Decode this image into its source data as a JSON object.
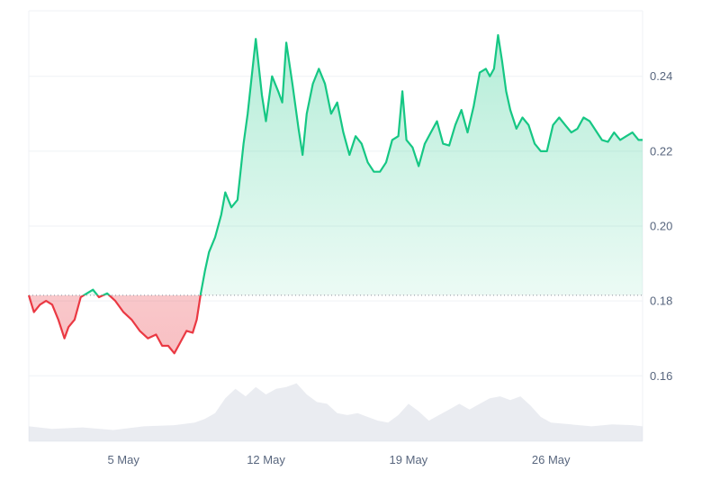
{
  "chart_data": {
    "type": "area",
    "baseline": 0.1815,
    "ylim": [
      0.1425,
      0.2575
    ],
    "y_ticks": [
      {
        "value": 0.24,
        "label": "0.24"
      },
      {
        "value": 0.22,
        "label": "0.22"
      },
      {
        "value": 0.2,
        "label": "0.20"
      },
      {
        "value": 0.18,
        "label": "0.18"
      },
      {
        "value": 0.16,
        "label": "0.16"
      }
    ],
    "x_ticks": [
      {
        "value": 5,
        "label": "5 May"
      },
      {
        "value": 12,
        "label": "12 May"
      },
      {
        "value": 19,
        "label": "19 May"
      },
      {
        "value": 26,
        "label": "26 May"
      }
    ],
    "xlim": [
      0.35,
      30.5
    ],
    "series": [
      {
        "kind": "price",
        "x": [
          0.35,
          0.6,
          0.9,
          1.2,
          1.5,
          1.8,
          2.1,
          2.3,
          2.6,
          2.9,
          3.2,
          3.5,
          3.8,
          4.2,
          4.6,
          5.0,
          5.4,
          5.8,
          6.2,
          6.6,
          6.9,
          7.2,
          7.5,
          7.8,
          8.1,
          8.4,
          8.6,
          8.8,
          9.0,
          9.2,
          9.5,
          9.8,
          10.0,
          10.3,
          10.6,
          10.9,
          11.1,
          11.3,
          11.5,
          11.8,
          12.0,
          12.3,
          12.6,
          12.8,
          13.0,
          13.3,
          13.6,
          13.8,
          14.0,
          14.3,
          14.6,
          14.9,
          15.2,
          15.5,
          15.8,
          16.1,
          16.4,
          16.7,
          17.0,
          17.3,
          17.6,
          17.9,
          18.2,
          18.5,
          18.7,
          18.9,
          19.2,
          19.5,
          19.8,
          20.1,
          20.4,
          20.7,
          21.0,
          21.3,
          21.6,
          21.9,
          22.2,
          22.5,
          22.8,
          23.0,
          23.2,
          23.4,
          23.6,
          23.8,
          24.0,
          24.3,
          24.6,
          24.9,
          25.2,
          25.5,
          25.8,
          26.1,
          26.4,
          26.7,
          27.0,
          27.3,
          27.6,
          27.9,
          28.2,
          28.5,
          28.8,
          29.1,
          29.4,
          29.7,
          30.0,
          30.3,
          30.5
        ],
        "y": [
          0.1815,
          0.177,
          0.179,
          0.18,
          0.179,
          0.175,
          0.17,
          0.173,
          0.175,
          0.181,
          0.182,
          0.183,
          0.181,
          0.182,
          0.18,
          0.177,
          0.175,
          0.172,
          0.17,
          0.171,
          0.168,
          0.168,
          0.166,
          0.169,
          0.172,
          0.1715,
          0.175,
          0.182,
          0.188,
          0.193,
          0.197,
          0.203,
          0.209,
          0.205,
          0.207,
          0.222,
          0.23,
          0.24,
          0.25,
          0.235,
          0.228,
          0.24,
          0.236,
          0.233,
          0.249,
          0.238,
          0.226,
          0.219,
          0.23,
          0.238,
          0.242,
          0.238,
          0.23,
          0.233,
          0.225,
          0.219,
          0.224,
          0.222,
          0.217,
          0.2145,
          0.2145,
          0.217,
          0.223,
          0.224,
          0.236,
          0.223,
          0.221,
          0.216,
          0.222,
          0.225,
          0.228,
          0.222,
          0.2215,
          0.227,
          0.231,
          0.225,
          0.232,
          0.241,
          0.242,
          0.24,
          0.242,
          0.251,
          0.244,
          0.236,
          0.231,
          0.226,
          0.229,
          0.227,
          0.222,
          0.22,
          0.22,
          0.227,
          0.229,
          0.227,
          0.225,
          0.226,
          0.229,
          0.228,
          0.2255,
          0.223,
          0.2225,
          0.225,
          0.223,
          0.224,
          0.225,
          0.223,
          0.223
        ]
      },
      {
        "kind": "volume",
        "x": [
          0.35,
          1.5,
          3.0,
          4.5,
          6.0,
          7.5,
          8.5,
          9.0,
          9.5,
          10.0,
          10.5,
          11.0,
          11.5,
          12.0,
          12.5,
          13.0,
          13.5,
          14.0,
          14.5,
          15.0,
          15.5,
          16.0,
          16.5,
          17.0,
          17.5,
          18.0,
          18.5,
          19.0,
          19.5,
          20.0,
          20.5,
          21.0,
          21.5,
          22.0,
          22.5,
          23.0,
          23.5,
          24.0,
          24.5,
          25.0,
          25.5,
          26.0,
          27.0,
          28.0,
          29.0,
          30.0,
          30.5
        ],
        "y": [
          0.1465,
          0.1458,
          0.1462,
          0.1455,
          0.1465,
          0.1468,
          0.1475,
          0.1485,
          0.15,
          0.154,
          0.1565,
          0.1545,
          0.157,
          0.155,
          0.1565,
          0.157,
          0.158,
          0.155,
          0.153,
          0.1525,
          0.15,
          0.1495,
          0.15,
          0.149,
          0.148,
          0.1475,
          0.1495,
          0.1525,
          0.1505,
          0.148,
          0.1495,
          0.151,
          0.1525,
          0.151,
          0.1525,
          0.154,
          0.1545,
          0.1535,
          0.1545,
          0.152,
          0.149,
          0.1475,
          0.147,
          0.1465,
          0.147,
          0.1468,
          0.1465
        ]
      }
    ],
    "colors": {
      "up": "#16c784",
      "down": "#ea3943",
      "up_fill": "#16c784",
      "down_fill": "#ea3943",
      "volume": "#d9dde5",
      "grid": "#eff2f5",
      "baseline": "#8a919e",
      "axis_text": "#58667e"
    }
  }
}
